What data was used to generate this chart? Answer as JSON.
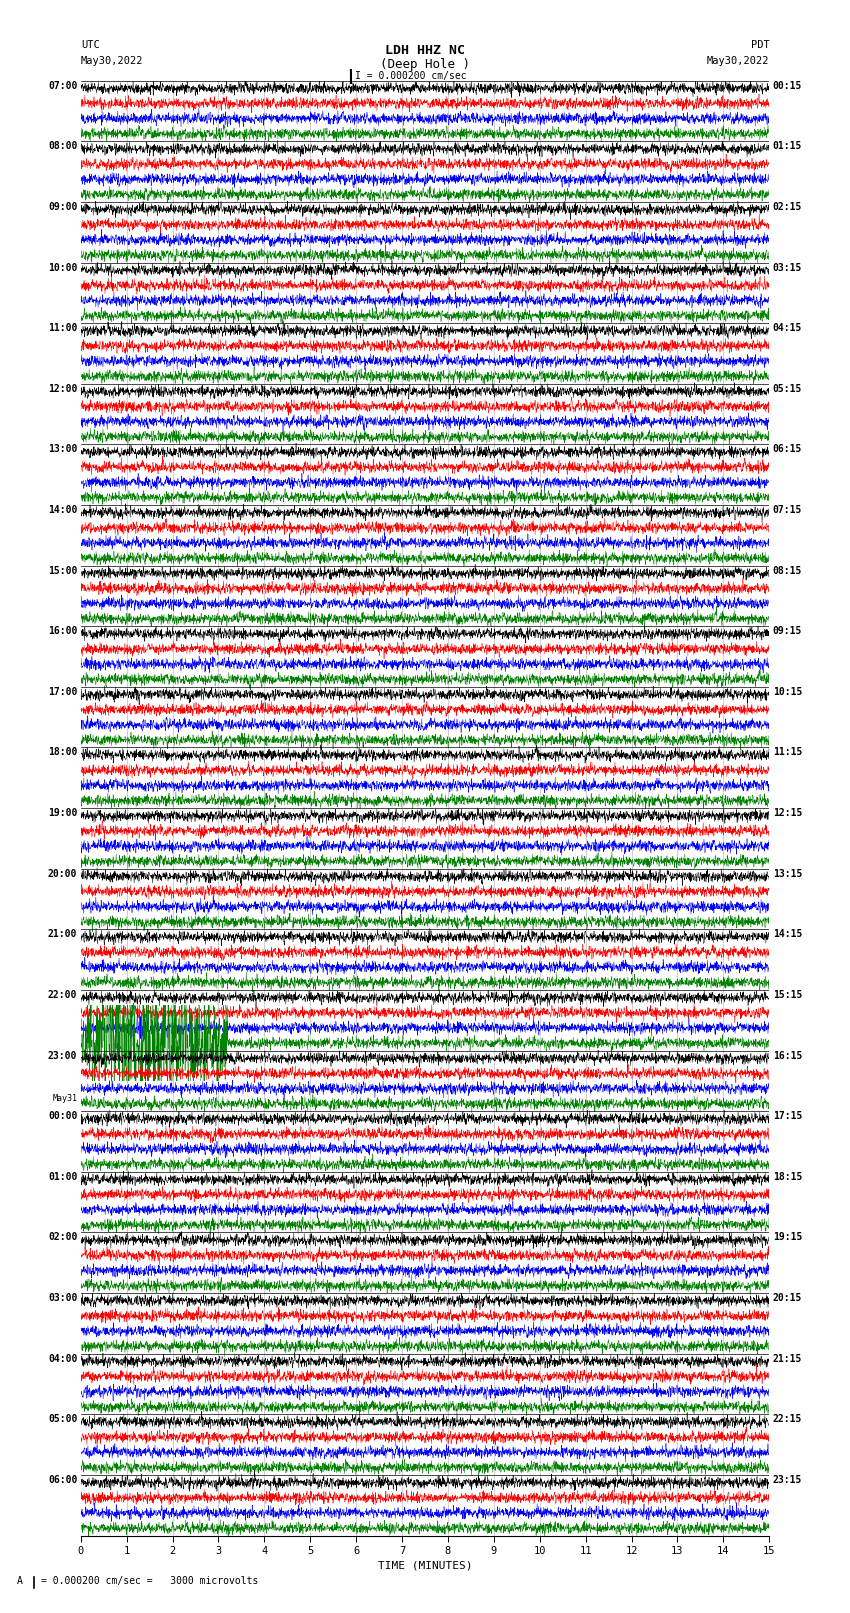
{
  "title_line1": "LDH HHZ NC",
  "title_line2": "(Deep Hole )",
  "scale_label": "I = 0.000200 cm/sec",
  "footer_label": "A I = 0.000200 cm/sec =   3000 microvolts",
  "utc_label": "UTC",
  "utc_date": "May30,2022",
  "pdt_label": "PDT",
  "pdt_date": "May30,2022",
  "xlabel": "TIME (MINUTES)",
  "fig_width": 8.5,
  "fig_height": 16.13,
  "dpi": 100,
  "background_color": "#ffffff",
  "trace_colors": [
    "#000000",
    "#ff0000",
    "#0000ff",
    "#008000"
  ],
  "left_times": [
    "07:00",
    "08:00",
    "09:00",
    "10:00",
    "11:00",
    "12:00",
    "13:00",
    "14:00",
    "15:00",
    "16:00",
    "17:00",
    "18:00",
    "19:00",
    "20:00",
    "21:00",
    "22:00",
    "23:00",
    "May31\n00:00",
    "01:00",
    "02:00",
    "03:00",
    "04:00",
    "05:00",
    "06:00"
  ],
  "right_times": [
    "00:15",
    "01:15",
    "02:15",
    "03:15",
    "04:15",
    "05:15",
    "06:15",
    "07:15",
    "08:15",
    "09:15",
    "10:15",
    "11:15",
    "12:15",
    "13:15",
    "14:15",
    "15:15",
    "16:15",
    "17:15",
    "18:15",
    "19:15",
    "20:15",
    "21:15",
    "22:15",
    "23:15"
  ],
  "num_rows": 24,
  "traces_per_row": 4,
  "noise_scale": 0.25,
  "eq_row": 15,
  "eq_trace": 3,
  "eq2_row": 15,
  "eq2_trace": 2
}
